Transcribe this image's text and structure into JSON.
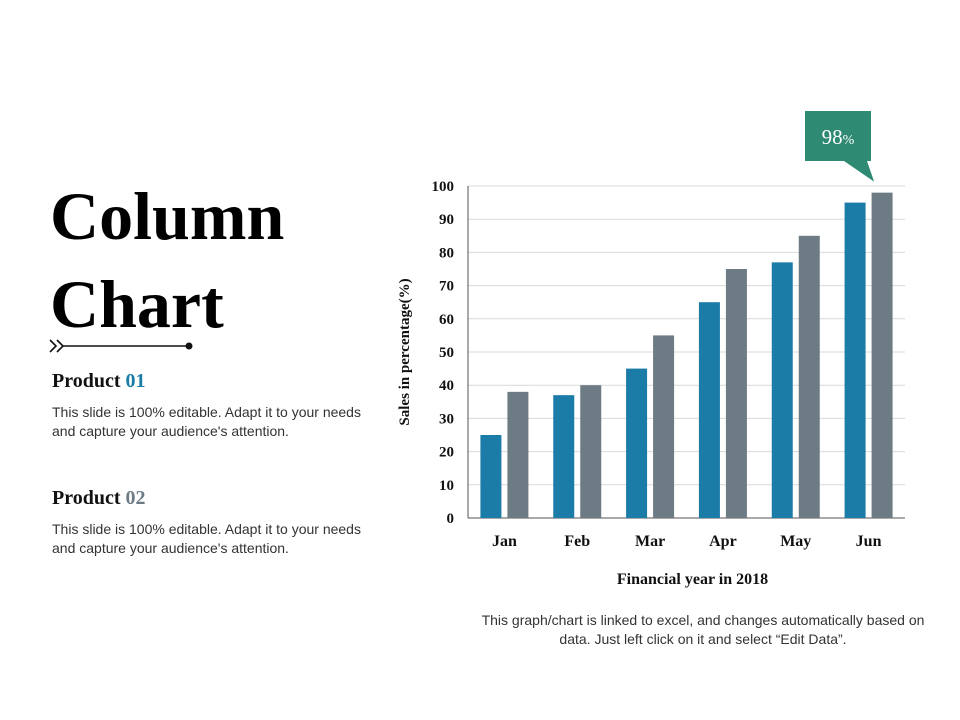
{
  "title": {
    "line1": "Column",
    "line2": "Chart"
  },
  "products": [
    {
      "label": "Product",
      "number": "01",
      "number_color": "#1b7ca8",
      "description": "This slide is 100% editable. Adapt it to your needs and capture your audience's attention."
    },
    {
      "label": "Product",
      "number": "02",
      "number_color": "#6d7b84",
      "description": "This slide is 100% editable. Adapt it to your needs and capture your audience's attention."
    }
  ],
  "chart_data": {
    "type": "bar",
    "categories": [
      "Jan",
      "Feb",
      "Mar",
      "Apr",
      "May",
      "Jun"
    ],
    "series": [
      {
        "values": [
          25,
          37,
          45,
          65,
          77,
          95
        ],
        "color": "#1b7ca8"
      },
      {
        "values": [
          38,
          40,
          55,
          75,
          85,
          98
        ],
        "color": "#6d7b84"
      }
    ],
    "xlabel": "Financial year in 2018",
    "ylabel": "Sales in percentage(%)",
    "ylim": [
      0,
      100
    ],
    "yticks": [
      0,
      10,
      20,
      30,
      40,
      50,
      60,
      70,
      80,
      90,
      100
    ],
    "grid": true,
    "callout": {
      "value": "98",
      "unit": "%",
      "color": "#2e8a72"
    }
  },
  "footnote": "This graph/chart is linked to excel, and changes automatically based on data. Just left click on it and select “Edit Data”."
}
